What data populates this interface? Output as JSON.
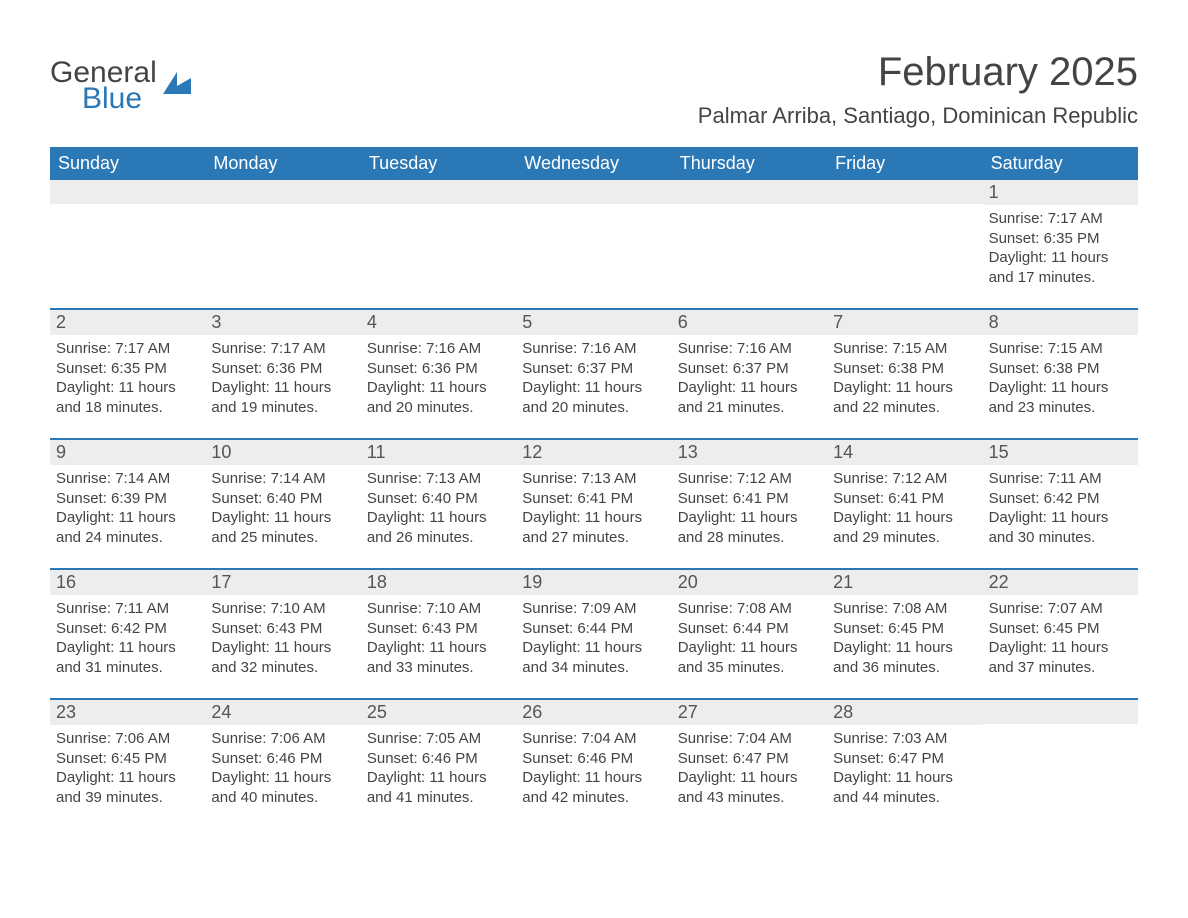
{
  "logo": {
    "word1": "General",
    "word2": "Blue",
    "word1_color": "#444444",
    "word2_color": "#2b78b7"
  },
  "title": "February 2025",
  "location": "Palmar Arriba, Santiago, Dominican Republic",
  "calendar": {
    "type": "month-grid",
    "header_bg": "#2b78b7",
    "header_fg": "#ffffff",
    "row_divider_color": "#2b78b7",
    "daynum_bg": "#ededed",
    "text_color": "#444444",
    "background_color": "#ffffff",
    "dow_labels": [
      "Sunday",
      "Monday",
      "Tuesday",
      "Wednesday",
      "Thursday",
      "Friday",
      "Saturday"
    ],
    "weeks": [
      [
        {
          "blank": true
        },
        {
          "blank": true
        },
        {
          "blank": true
        },
        {
          "blank": true
        },
        {
          "blank": true
        },
        {
          "blank": true
        },
        {
          "day": "1",
          "sunrise": "Sunrise: 7:17 AM",
          "sunset": "Sunset: 6:35 PM",
          "daylight1": "Daylight: 11 hours",
          "daylight2": "and 17 minutes."
        }
      ],
      [
        {
          "day": "2",
          "sunrise": "Sunrise: 7:17 AM",
          "sunset": "Sunset: 6:35 PM",
          "daylight1": "Daylight: 11 hours",
          "daylight2": "and 18 minutes."
        },
        {
          "day": "3",
          "sunrise": "Sunrise: 7:17 AM",
          "sunset": "Sunset: 6:36 PM",
          "daylight1": "Daylight: 11 hours",
          "daylight2": "and 19 minutes."
        },
        {
          "day": "4",
          "sunrise": "Sunrise: 7:16 AM",
          "sunset": "Sunset: 6:36 PM",
          "daylight1": "Daylight: 11 hours",
          "daylight2": "and 20 minutes."
        },
        {
          "day": "5",
          "sunrise": "Sunrise: 7:16 AM",
          "sunset": "Sunset: 6:37 PM",
          "daylight1": "Daylight: 11 hours",
          "daylight2": "and 20 minutes."
        },
        {
          "day": "6",
          "sunrise": "Sunrise: 7:16 AM",
          "sunset": "Sunset: 6:37 PM",
          "daylight1": "Daylight: 11 hours",
          "daylight2": "and 21 minutes."
        },
        {
          "day": "7",
          "sunrise": "Sunrise: 7:15 AM",
          "sunset": "Sunset: 6:38 PM",
          "daylight1": "Daylight: 11 hours",
          "daylight2": "and 22 minutes."
        },
        {
          "day": "8",
          "sunrise": "Sunrise: 7:15 AM",
          "sunset": "Sunset: 6:38 PM",
          "daylight1": "Daylight: 11 hours",
          "daylight2": "and 23 minutes."
        }
      ],
      [
        {
          "day": "9",
          "sunrise": "Sunrise: 7:14 AM",
          "sunset": "Sunset: 6:39 PM",
          "daylight1": "Daylight: 11 hours",
          "daylight2": "and 24 minutes."
        },
        {
          "day": "10",
          "sunrise": "Sunrise: 7:14 AM",
          "sunset": "Sunset: 6:40 PM",
          "daylight1": "Daylight: 11 hours",
          "daylight2": "and 25 minutes."
        },
        {
          "day": "11",
          "sunrise": "Sunrise: 7:13 AM",
          "sunset": "Sunset: 6:40 PM",
          "daylight1": "Daylight: 11 hours",
          "daylight2": "and 26 minutes."
        },
        {
          "day": "12",
          "sunrise": "Sunrise: 7:13 AM",
          "sunset": "Sunset: 6:41 PM",
          "daylight1": "Daylight: 11 hours",
          "daylight2": "and 27 minutes."
        },
        {
          "day": "13",
          "sunrise": "Sunrise: 7:12 AM",
          "sunset": "Sunset: 6:41 PM",
          "daylight1": "Daylight: 11 hours",
          "daylight2": "and 28 minutes."
        },
        {
          "day": "14",
          "sunrise": "Sunrise: 7:12 AM",
          "sunset": "Sunset: 6:41 PM",
          "daylight1": "Daylight: 11 hours",
          "daylight2": "and 29 minutes."
        },
        {
          "day": "15",
          "sunrise": "Sunrise: 7:11 AM",
          "sunset": "Sunset: 6:42 PM",
          "daylight1": "Daylight: 11 hours",
          "daylight2": "and 30 minutes."
        }
      ],
      [
        {
          "day": "16",
          "sunrise": "Sunrise: 7:11 AM",
          "sunset": "Sunset: 6:42 PM",
          "daylight1": "Daylight: 11 hours",
          "daylight2": "and 31 minutes."
        },
        {
          "day": "17",
          "sunrise": "Sunrise: 7:10 AM",
          "sunset": "Sunset: 6:43 PM",
          "daylight1": "Daylight: 11 hours",
          "daylight2": "and 32 minutes."
        },
        {
          "day": "18",
          "sunrise": "Sunrise: 7:10 AM",
          "sunset": "Sunset: 6:43 PM",
          "daylight1": "Daylight: 11 hours",
          "daylight2": "and 33 minutes."
        },
        {
          "day": "19",
          "sunrise": "Sunrise: 7:09 AM",
          "sunset": "Sunset: 6:44 PM",
          "daylight1": "Daylight: 11 hours",
          "daylight2": "and 34 minutes."
        },
        {
          "day": "20",
          "sunrise": "Sunrise: 7:08 AM",
          "sunset": "Sunset: 6:44 PM",
          "daylight1": "Daylight: 11 hours",
          "daylight2": "and 35 minutes."
        },
        {
          "day": "21",
          "sunrise": "Sunrise: 7:08 AM",
          "sunset": "Sunset: 6:45 PM",
          "daylight1": "Daylight: 11 hours",
          "daylight2": "and 36 minutes."
        },
        {
          "day": "22",
          "sunrise": "Sunrise: 7:07 AM",
          "sunset": "Sunset: 6:45 PM",
          "daylight1": "Daylight: 11 hours",
          "daylight2": "and 37 minutes."
        }
      ],
      [
        {
          "day": "23",
          "sunrise": "Sunrise: 7:06 AM",
          "sunset": "Sunset: 6:45 PM",
          "daylight1": "Daylight: 11 hours",
          "daylight2": "and 39 minutes."
        },
        {
          "day": "24",
          "sunrise": "Sunrise: 7:06 AM",
          "sunset": "Sunset: 6:46 PM",
          "daylight1": "Daylight: 11 hours",
          "daylight2": "and 40 minutes."
        },
        {
          "day": "25",
          "sunrise": "Sunrise: 7:05 AM",
          "sunset": "Sunset: 6:46 PM",
          "daylight1": "Daylight: 11 hours",
          "daylight2": "and 41 minutes."
        },
        {
          "day": "26",
          "sunrise": "Sunrise: 7:04 AM",
          "sunset": "Sunset: 6:46 PM",
          "daylight1": "Daylight: 11 hours",
          "daylight2": "and 42 minutes."
        },
        {
          "day": "27",
          "sunrise": "Sunrise: 7:04 AM",
          "sunset": "Sunset: 6:47 PM",
          "daylight1": "Daylight: 11 hours",
          "daylight2": "and 43 minutes."
        },
        {
          "day": "28",
          "sunrise": "Sunrise: 7:03 AM",
          "sunset": "Sunset: 6:47 PM",
          "daylight1": "Daylight: 11 hours",
          "daylight2": "and 44 minutes."
        },
        {
          "blank": true
        }
      ]
    ]
  }
}
